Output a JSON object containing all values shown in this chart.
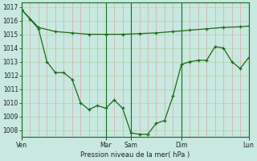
{
  "xlabel": "Pression niveau de la mer( hPa )",
  "bg_color": "#c8e8e0",
  "line_color": "#1a6b1a",
  "grid_color_v": "#d8a8a8",
  "grid_color_h": "#b0d4b0",
  "ylim": [
    1007.5,
    1017.3
  ],
  "yticks": [
    1008,
    1009,
    1010,
    1011,
    1012,
    1013,
    1014,
    1015,
    1016,
    1017
  ],
  "xtick_labels": [
    "Ven",
    "Mar",
    "Sam",
    "Dim",
    "Lun"
  ],
  "xtick_positions": [
    0,
    10,
    13,
    19,
    27
  ],
  "vline_positions": [
    0,
    10,
    13,
    19,
    27
  ],
  "n_vgrid": 28,
  "line1_x": [
    0,
    2,
    4,
    6,
    8,
    10,
    12,
    14,
    16,
    18,
    20,
    22,
    24,
    26,
    27
  ],
  "line1_y": [
    1016.8,
    1015.5,
    1015.2,
    1015.1,
    1015.0,
    1015.0,
    1015.0,
    1015.05,
    1015.1,
    1015.2,
    1015.3,
    1015.4,
    1015.5,
    1015.55,
    1015.6
  ],
  "line2_x": [
    0,
    1,
    2,
    3,
    4,
    5,
    6,
    7,
    8,
    9,
    10,
    11,
    12,
    13,
    14,
    15,
    16,
    17,
    18,
    19,
    20,
    21,
    22,
    23,
    24,
    25,
    26,
    27
  ],
  "line2_y": [
    1016.8,
    1016.1,
    1015.4,
    1013.0,
    1012.2,
    1012.2,
    1011.7,
    1010.0,
    1009.5,
    1009.8,
    1009.6,
    1010.2,
    1009.6,
    1007.8,
    1007.7,
    1007.7,
    1008.5,
    1008.7,
    1010.5,
    1012.8,
    1013.0,
    1013.1,
    1013.1,
    1014.1,
    1014.0,
    1013.0,
    1012.5,
    1013.3
  ],
  "ylabel_fontsize": 6.0,
  "tick_fontsize": 5.5
}
